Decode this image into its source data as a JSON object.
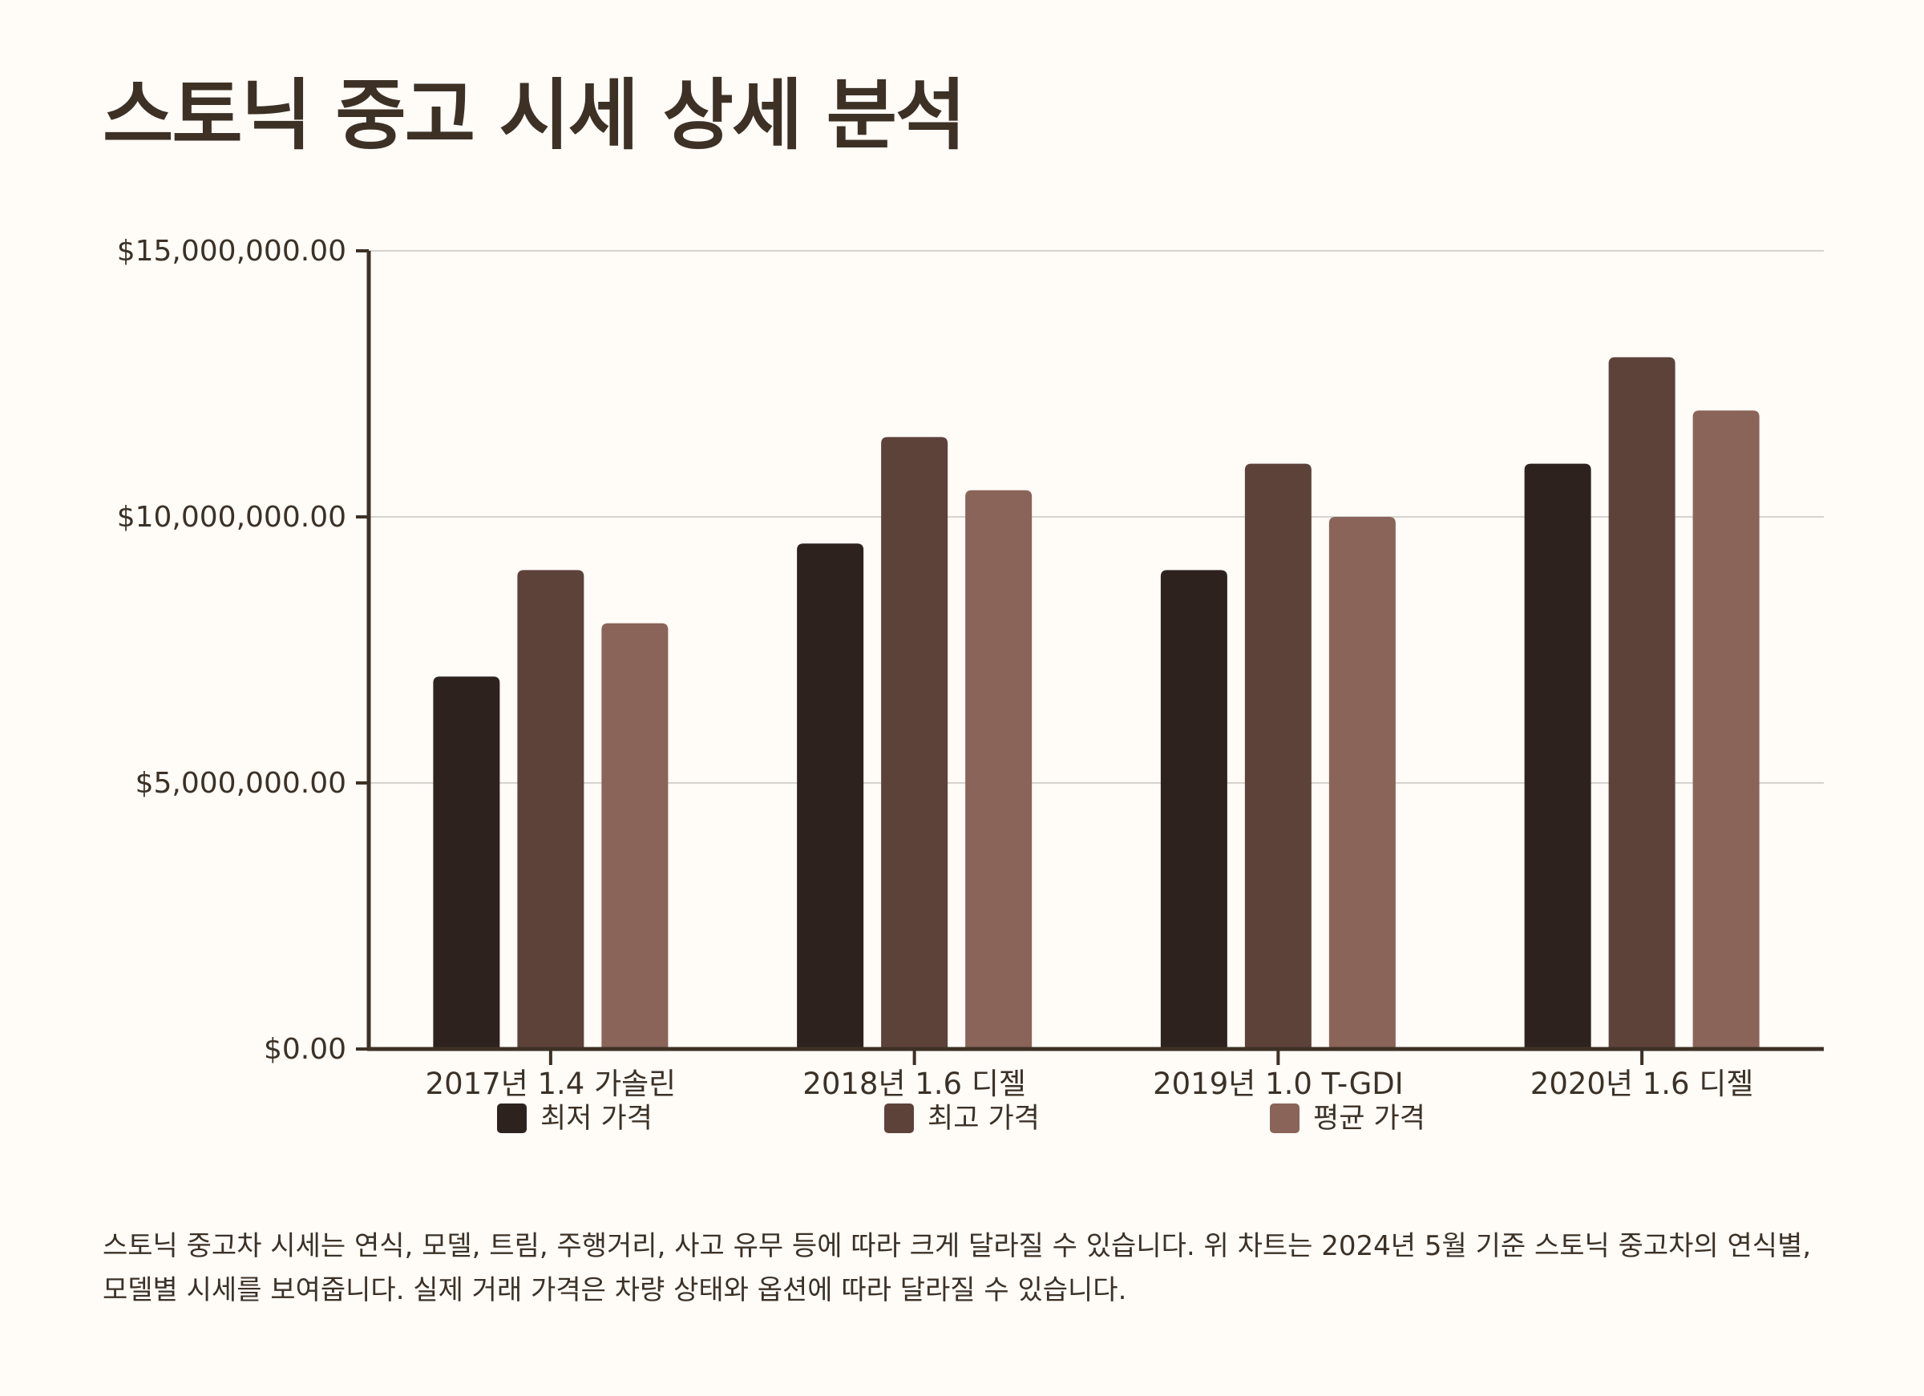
{
  "title": "스토닉 중고 시세 상세 분석",
  "description": "스토닉 중고차 시세는 연식, 모델, 트림, 주행거리, 사고 유무 등에 따라 크게 달라질 수 있습니다. 위 차트는 2024년 5월 기준 스토닉 중고차의 연식별, 모델별 시세를 보여줍니다. 실제 거래 가격은 차량 상태와 옵션에 따라 달라질 수 있습니다.",
  "chart_data": {
    "type": "bar",
    "title": "",
    "xlabel": "",
    "ylabel": "",
    "categories": [
      "2017년 1.4 가솔린",
      "2018년 1.6 디젤",
      "2019년 1.0 T-GDI",
      "2020년 1.6 디젤"
    ],
    "series": [
      {
        "name": "최저 가격",
        "color": "#2e221f",
        "values": [
          7000000,
          9500000,
          9000000,
          11000000
        ]
      },
      {
        "name": "최고 가격",
        "color": "#5d423a",
        "values": [
          9000000,
          11500000,
          11000000,
          13000000
        ]
      },
      {
        "name": "평균 가격",
        "color": "#8a6458",
        "values": [
          8000000,
          10500000,
          10000000,
          12000000
        ]
      }
    ],
    "ylim": [
      0,
      15000000
    ],
    "yticks": [
      0,
      5000000,
      10000000,
      15000000
    ],
    "ytick_labels": [
      "$0.00",
      "$5,000,000.00",
      "$10,000,000.00",
      "$15,000,000.00"
    ],
    "grid": true,
    "legend_position": "bottom"
  }
}
